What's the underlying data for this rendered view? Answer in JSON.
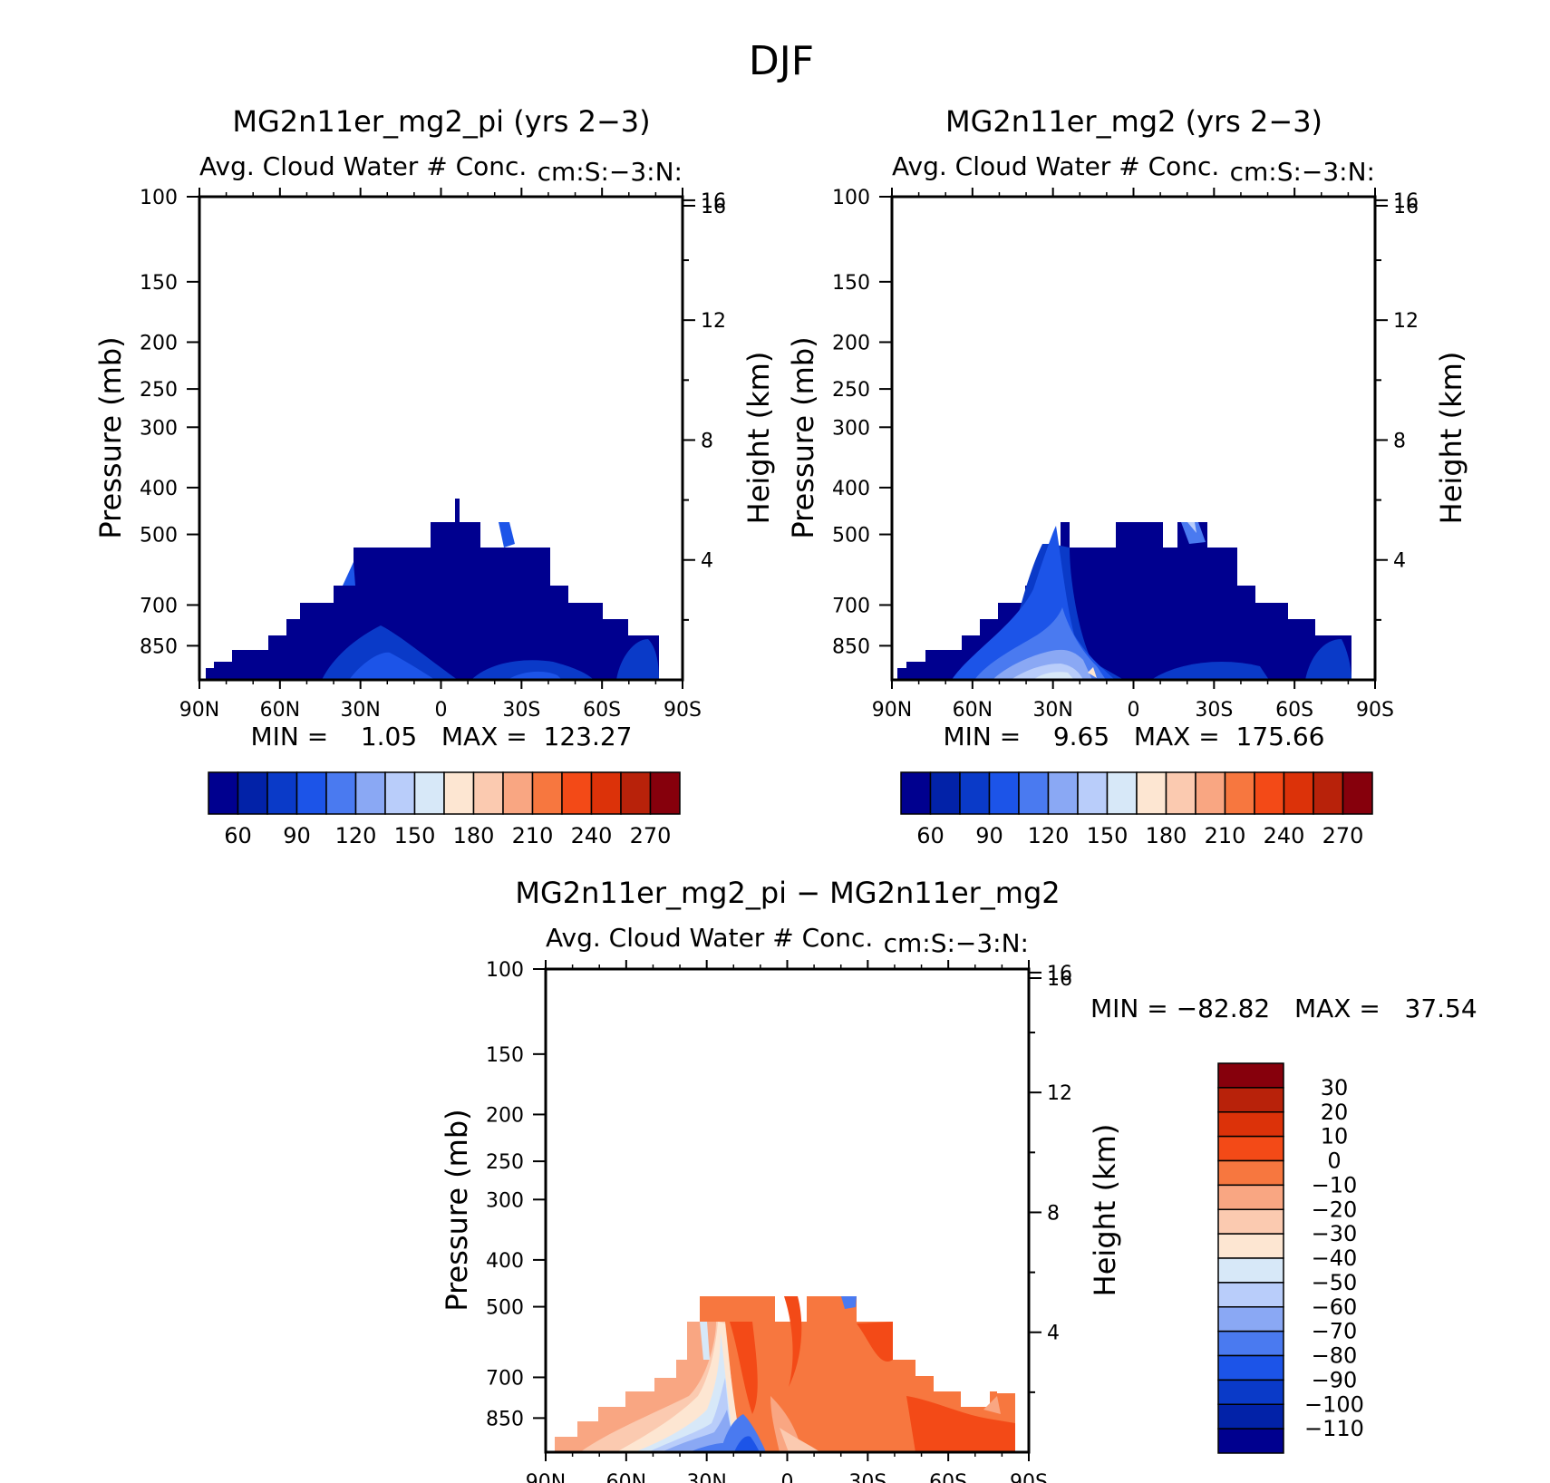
{
  "figure_title": "DJF",
  "pressure_axis_label": "Pressure (mb)",
  "height_axis_label": "Height (km)",
  "pressure_ticks": [
    "100",
    "150",
    "200",
    "250",
    "300",
    "400",
    "500",
    "700",
    "850"
  ],
  "height_ticks": [
    "16",
    "12",
    "8",
    "4"
  ],
  "lat_ticks": [
    "90N",
    "60N",
    "30N",
    "0",
    "30S",
    "60S",
    "90S"
  ],
  "abs_colorbar": {
    "labels": [
      "60",
      "90",
      "120",
      "150",
      "180",
      "210",
      "240",
      "270"
    ],
    "colors": [
      "#00008f",
      "#0222a8",
      "#0a3ac8",
      "#1c54e8",
      "#4a7af0",
      "#8aa8f4",
      "#b9cdfa",
      "#d7e8f8",
      "#fde6d2",
      "#fbcab0",
      "#f9a682",
      "#f7773f",
      "#f34a17",
      "#dc3209",
      "#b8220a",
      "#86000c"
    ]
  },
  "diff_colorbar": {
    "labels": [
      "30",
      "20",
      "10",
      "0",
      "−10",
      "−20",
      "−30",
      "−40",
      "−50",
      "−60",
      "−70",
      "−80",
      "−90",
      "−100",
      "−110"
    ],
    "colors": [
      "#86000c",
      "#b8220a",
      "#dc3209",
      "#f34a17",
      "#f7773f",
      "#f9a682",
      "#fbcab0",
      "#fde6d2",
      "#d7e8f8",
      "#b9cdfa",
      "#8aa8f4",
      "#4a7af0",
      "#1c54e8",
      "#0a3ac8",
      "#0222a8",
      "#00008f"
    ]
  },
  "chart_data": [
    {
      "type": "heatmap",
      "title": "MG2n11er_mg2_pi (yrs 2−3)",
      "subtitle_left": "Avg. Cloud Water # Conc.",
      "subtitle_right": "cm:S:−3:N:",
      "x_ticks": [
        "90N",
        "60N",
        "30N",
        "0",
        "30S",
        "60S",
        "90S"
      ],
      "y_ticks": [
        100,
        150,
        200,
        250,
        300,
        400,
        500,
        700,
        850
      ],
      "y_right_ticks": [
        16,
        12,
        8,
        4
      ],
      "ylabel": "Pressure (mb)",
      "y_right_label": "Height (km)",
      "stats": "MIN =    1.05   MAX =  123.27",
      "min": 1.05,
      "max": 123.27,
      "levels": [
        60,
        90,
        120,
        150,
        180,
        210,
        240,
        270
      ],
      "field": "mostly below 60; weak 70-110 patches near 30N and near 45S below 850 mb"
    },
    {
      "type": "heatmap",
      "title": "MG2n11er_mg2 (yrs 2−3)",
      "subtitle_left": "Avg. Cloud Water # Conc.",
      "subtitle_right": "cm:S:−3:N:",
      "x_ticks": [
        "90N",
        "60N",
        "30N",
        "0",
        "30S",
        "60S",
        "90S"
      ],
      "y_ticks": [
        100,
        150,
        200,
        250,
        300,
        400,
        500,
        700,
        850
      ],
      "y_right_ticks": [
        16,
        12,
        8,
        4
      ],
      "ylabel": "Pressure (mb)",
      "y_right_label": "Height (km)",
      "stats": "MIN =    9.65   MAX =  175.66",
      "min": 9.65,
      "max": 175.66,
      "levels": [
        60,
        90,
        120,
        150,
        180,
        210,
        240,
        270
      ],
      "field": "plume of 90-175 values between 40N and 10N from surface to ~450 mb; elsewhere below 60"
    },
    {
      "type": "heatmap",
      "title": "MG2n11er_mg2_pi − MG2n11er_mg2",
      "subtitle_left": "Avg. Cloud Water # Conc.",
      "subtitle_right": "cm:S:−3:N:",
      "x_ticks": [
        "90N",
        "60N",
        "30N",
        "0",
        "30S",
        "60S",
        "90S"
      ],
      "y_ticks": [
        100,
        150,
        200,
        250,
        300,
        400,
        500,
        700,
        850
      ],
      "y_right_ticks": [
        16,
        12,
        8,
        4
      ],
      "ylabel": "Pressure (mb)",
      "y_right_label": "Height (km)",
      "stats": "MIN = −82.82   MAX =   37.54",
      "min": -82.82,
      "max": 37.54,
      "levels": [
        -110,
        -100,
        -90,
        -80,
        -70,
        -60,
        -50,
        -40,
        -30,
        -20,
        -10,
        0,
        10,
        20,
        30
      ],
      "field": "negative (-40 to -80) between 40N and 10N; 0 to 20 across tropics and southern hemisphere; -10 to -30 north of 40N"
    }
  ]
}
